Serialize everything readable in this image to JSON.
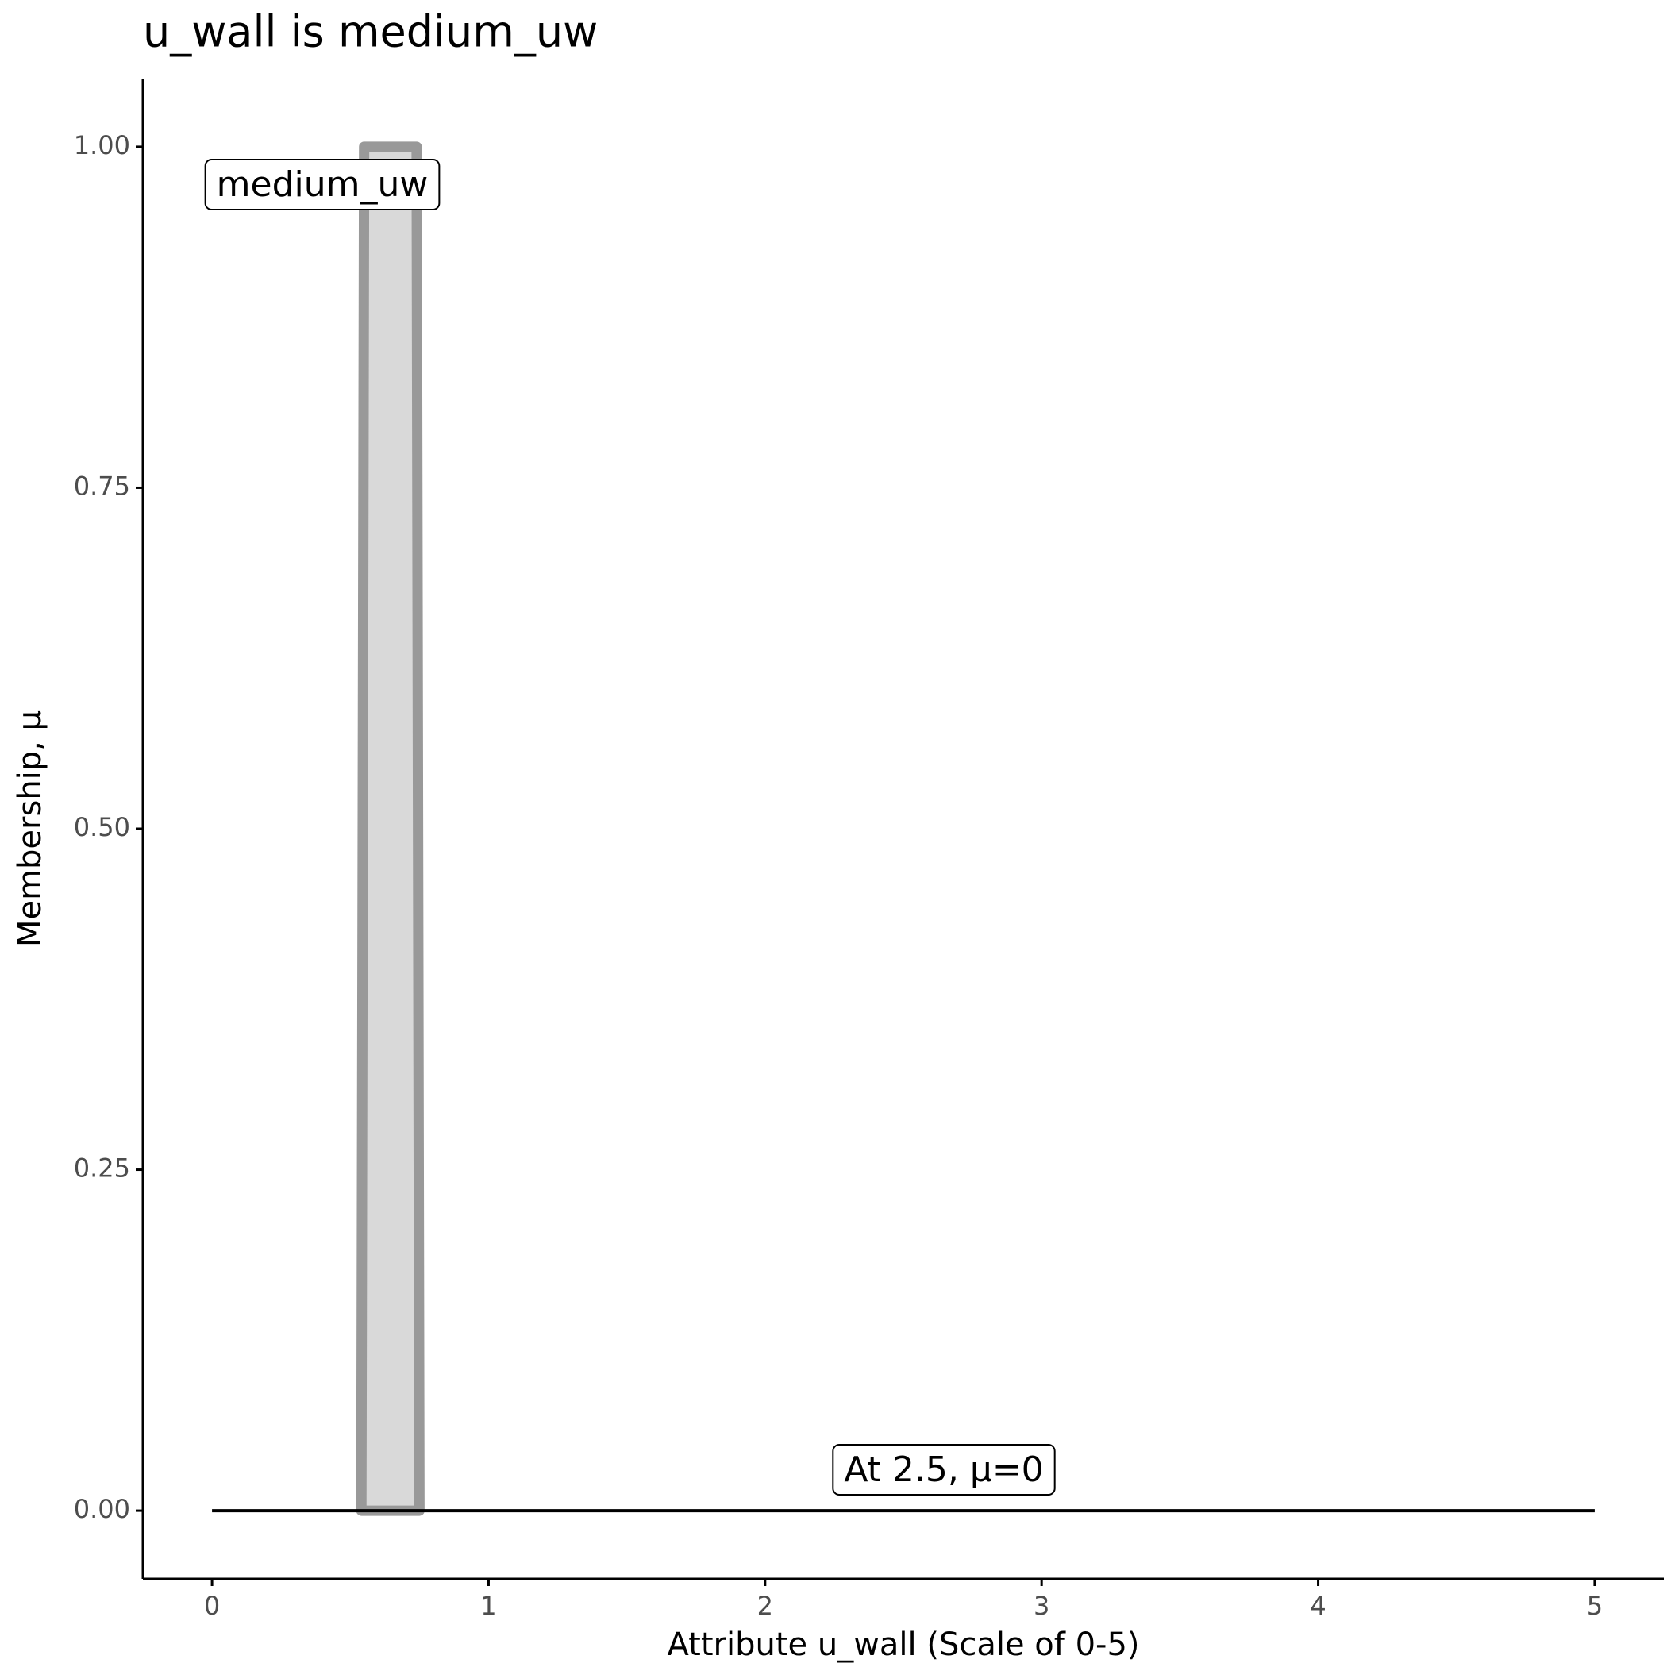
{
  "chart_data": {
    "type": "line",
    "title": "u_wall is medium_uw",
    "x_label": "Attribute u_wall (Scale of 0-5)",
    "y_label": "Membership, μ",
    "series": [
      {
        "x": [
          0.54,
          0.55,
          0.74,
          0.75
        ],
        "values": [
          0,
          1,
          1,
          0
        ],
        "color": "#999999",
        "fill": "#d9d9d9"
      },
      {
        "x": [
          0,
          5
        ],
        "values": [
          0,
          0
        ],
        "color": "#000000"
      }
    ],
    "annotations": [
      "medium_uw",
      "At 2.5, μ=0"
    ],
    "xlim": [
      -0.25,
      5.25
    ],
    "xticks": [
      0,
      1,
      2,
      3,
      4,
      5
    ],
    "ylim": [
      -0.05,
      1.05
    ],
    "yticks": [
      {
        "value": 0,
        "label": "0.00"
      },
      {
        "value": 0.25,
        "label": "0.25"
      },
      {
        "value": 0.5,
        "label": "0.50"
      },
      {
        "value": 0.75,
        "label": "0.75"
      },
      {
        "value": 1,
        "label": "1.00"
      }
    ],
    "grid": false
  }
}
